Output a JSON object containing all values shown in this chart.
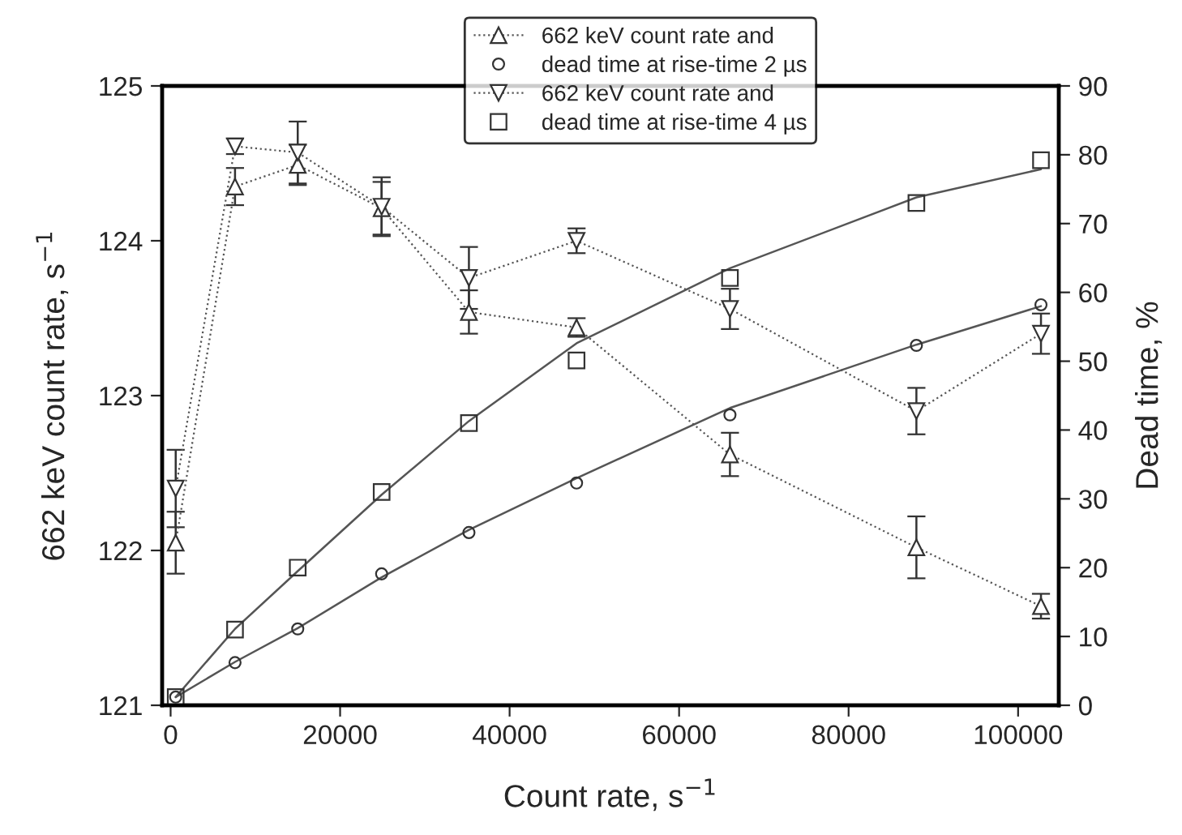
{
  "chart_data": {
    "type": "line",
    "xlabel": "Count rate, s$^{−1}$",
    "ylabel": "662 keV count rate, s$^{−1}$",
    "y2label": "Dead time, %",
    "x": [
      600,
      7600,
      15000,
      24900,
      35200,
      47900,
      66000,
      88000,
      102700
    ],
    "xlim": [
      -1000,
      104800
    ],
    "xticks": [
      0,
      20000,
      40000,
      60000,
      80000,
      100000
    ],
    "ylim": [
      121,
      125
    ],
    "yticks": [
      121,
      122,
      123,
      124,
      125
    ],
    "y2lim": [
      0,
      90
    ],
    "y2ticks": [
      0,
      10,
      20,
      30,
      40,
      50,
      60,
      70,
      80,
      90
    ],
    "legend": "top",
    "grid": false,
    "series": [
      {
        "name": "662 keV count rate and",
        "type": "line",
        "marker": "triangle",
        "line_style": "dotted",
        "color": "#555555",
        "values": [
          122.05,
          124.35,
          124.49,
          124.21,
          123.54,
          123.44,
          122.62,
          122.02,
          121.64
        ],
        "errors": [
          0.2,
          0.12,
          0.13,
          0.17,
          0.14,
          0.06,
          0.14,
          0.2,
          0.08
        ]
      },
      {
        "name": "dead time at rise-time 2 µs",
        "type": "scatter",
        "marker": "circle",
        "axis": "y2",
        "color": "#333333",
        "values": [
          1.2,
          6.2,
          11.1,
          19.1,
          25.1,
          32.3,
          42.2,
          52.3,
          58.2
        ]
      },
      {
        "name": "662 keV count rate and",
        "type": "line",
        "marker": "triangle_down",
        "line_style": "dotted",
        "color": "#555555",
        "values": [
          122.4,
          124.61,
          124.57,
          124.22,
          123.76,
          124.0,
          123.56,
          122.9,
          123.4
        ],
        "errors": [
          0.25,
          0.05,
          0.2,
          0.19,
          0.2,
          0.08,
          0.13,
          0.15,
          0.13
        ]
      },
      {
        "name": "dead time at rise-time 4 µs",
        "type": "scatter",
        "marker": "square",
        "axis": "y2",
        "color": "#333333",
        "values": [
          1.2,
          11,
          20,
          31,
          41,
          50.1,
          62.1,
          73,
          79.2
        ]
      },
      {
        "type": "line",
        "marker": "none",
        "line_style": "solid",
        "axis": "y2",
        "color": "#555555",
        "values": [
          1.2,
          6.3,
          11.2,
          18.6,
          25.5,
          33.0,
          43.2,
          52.4,
          58.0
        ]
      },
      {
        "type": "line",
        "marker": "none",
        "line_style": "solid",
        "axis": "y2",
        "color": "#555555",
        "values": [
          1.2,
          11.1,
          19.5,
          30.6,
          41.3,
          52.6,
          63.5,
          73.8,
          77.9
        ]
      }
    ]
  }
}
